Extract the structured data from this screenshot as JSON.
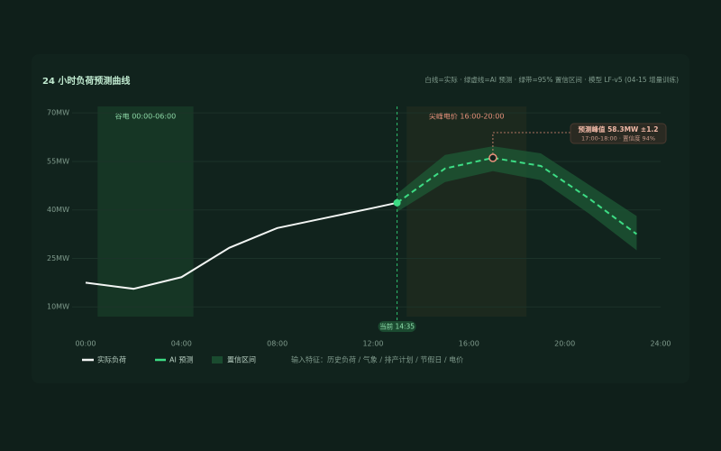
{
  "chart_data": {
    "type": "line",
    "title": "24 小时负荷预测曲线",
    "subtitle": "白线=实际 · 绿虚线=AI 预测 · 绿带=95% 置信区间 · 模型 LF-v5 (04-15 增量训练)",
    "xlim": [
      0,
      24
    ],
    "xticks": [
      {
        "value": 0,
        "label": "00:00"
      },
      {
        "value": 4,
        "label": "04:00"
      },
      {
        "value": 8,
        "label": "08:00"
      },
      {
        "value": 12,
        "label": "12:00"
      },
      {
        "value": 16,
        "label": "16:00"
      },
      {
        "value": 20,
        "label": "20:00"
      },
      {
        "value": 24,
        "label": "24:00"
      }
    ],
    "ylim": [
      7,
      72
    ],
    "yticks": [
      {
        "value": 10,
        "label": "10MW"
      },
      {
        "value": 25,
        "label": "25MW"
      },
      {
        "value": 40,
        "label": "40MW"
      },
      {
        "value": 55,
        "label": "55MW"
      },
      {
        "value": 70,
        "label": "70MW"
      }
    ],
    "grid": true,
    "series": [
      {
        "name": "实际负荷",
        "color": "#f2f5f3",
        "dashed": false,
        "x": [
          0,
          2,
          4,
          6,
          8,
          10,
          12,
          13
        ],
        "values": [
          17.5,
          15.6,
          19.2,
          28.3,
          34.4,
          37.5,
          40.6,
          42.2
        ]
      },
      {
        "name": "AI 预测",
        "color": "#3ddc84",
        "dashed": true,
        "x": [
          13,
          15,
          17,
          19,
          21,
          23
        ],
        "values": [
          42.2,
          52.8,
          56.1,
          53.6,
          43.6,
          32.5
        ]
      }
    ],
    "band": {
      "name": "置信区间",
      "color": "#1e5a36",
      "x": [
        13,
        15,
        17,
        19,
        21,
        23
      ],
      "lower": [
        39.4,
        48.6,
        52,
        49.2,
        38.9,
        27.5
      ],
      "upper": [
        45,
        57,
        59.7,
        57.5,
        47.8,
        38.1
      ]
    },
    "regions": [
      {
        "label": "谷电 00:00-06:00",
        "x": [
          0.5,
          4.5
        ],
        "color": "#173a27",
        "text_color": "#8fd9a8"
      },
      {
        "label": "尖峰电价 16:00-20:00",
        "x": [
          13.4,
          18.4
        ],
        "color": "#1f2a1f",
        "text_color": "#e8927c"
      }
    ],
    "now": {
      "x": 13,
      "label": "当前 14:35"
    },
    "annotation": {
      "title": "预测峰值 58.3MW ±1.2",
      "detail": "17:00-18:00 · 置信度 94%"
    },
    "features": "输入特征：历史负荷 / 气象 / 排产计划 / 节假日 / 电价"
  }
}
